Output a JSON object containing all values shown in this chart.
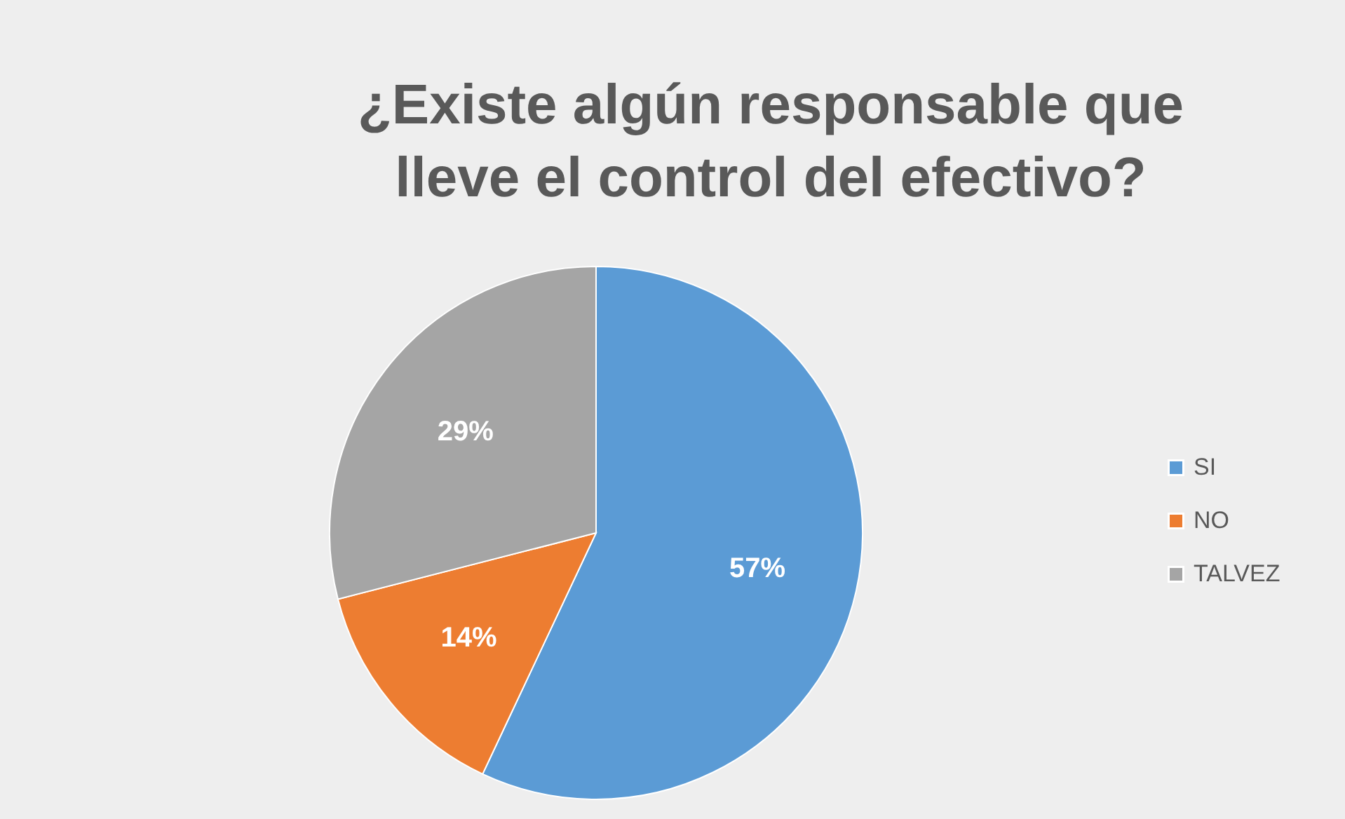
{
  "chart_data": {
    "type": "pie",
    "title": "¿Existe algún responsable que lleve el control del efectivo?",
    "categories": [
      "SI",
      "NO",
      "TALVEZ"
    ],
    "values": [
      57,
      14,
      29
    ],
    "colors": [
      "#5b9bd5",
      "#ed7d31",
      "#a5a5a5"
    ],
    "value_labels": [
      "57%",
      "14%",
      "29%"
    ],
    "legend": "right"
  }
}
